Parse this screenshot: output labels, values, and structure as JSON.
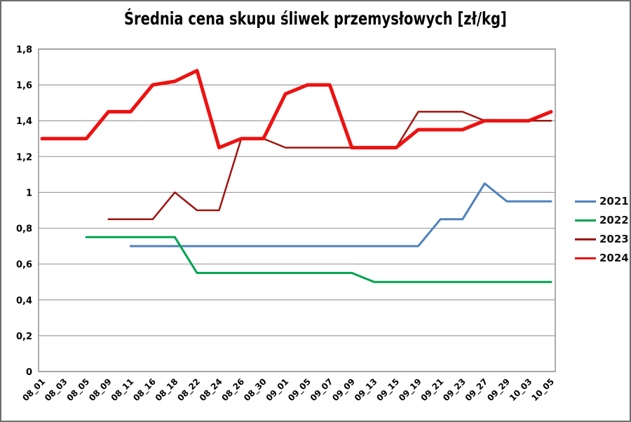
{
  "title": "Średnia cena skupu śliwek przemysłowych [zł/kg]",
  "chart_data": {
    "type": "line",
    "categories": [
      "08_01",
      "08_03",
      "08_05",
      "08_09",
      "08_11",
      "08_16",
      "08_18",
      "08_22",
      "08_24",
      "08_26",
      "08_30",
      "09_01",
      "09_05",
      "09_07",
      "09_09",
      "09_13",
      "09_15",
      "09_19",
      "09_21",
      "09_23",
      "09_27",
      "09_29",
      "10_03",
      "10_05"
    ],
    "series": [
      {
        "name": "2021",
        "color": "#4F81BD",
        "width": 3,
        "values": [
          null,
          null,
          null,
          null,
          0.7,
          0.7,
          0.7,
          0.7,
          0.7,
          0.7,
          0.7,
          0.7,
          0.7,
          0.7,
          0.7,
          0.7,
          0.7,
          0.7,
          0.85,
          0.85,
          1.05,
          0.95,
          0.95,
          0.95
        ]
      },
      {
        "name": "2022",
        "color": "#00A350",
        "width": 3,
        "values": [
          null,
          null,
          0.75,
          0.75,
          0.75,
          0.75,
          0.75,
          0.55,
          0.55,
          0.55,
          0.55,
          0.55,
          0.55,
          0.55,
          0.55,
          0.5,
          0.5,
          0.5,
          0.5,
          0.5,
          0.5,
          0.5,
          0.5,
          0.5
        ]
      },
      {
        "name": "2023",
        "color": "#A01410",
        "width": 2.5,
        "values": [
          null,
          null,
          null,
          0.85,
          0.85,
          0.85,
          1.0,
          0.9,
          0.9,
          1.3,
          1.3,
          1.25,
          1.25,
          1.25,
          1.25,
          1.25,
          1.25,
          1.45,
          1.45,
          1.45,
          1.4,
          1.4,
          1.4,
          1.4
        ]
      },
      {
        "name": "2024",
        "color": "#EC1212",
        "width": 5,
        "values": [
          1.3,
          1.3,
          1.3,
          1.45,
          1.45,
          1.6,
          1.62,
          1.68,
          1.25,
          1.3,
          1.3,
          1.55,
          1.6,
          1.6,
          1.25,
          1.25,
          1.25,
          1.35,
          1.35,
          1.35,
          1.4,
          1.4,
          1.4,
          1.45
        ]
      }
    ],
    "xlabel": "",
    "ylabel": "",
    "ylim": [
      0,
      1.8
    ],
    "ytick_values": [
      0,
      0.2,
      0.4,
      0.6,
      0.8,
      1,
      1.2,
      1.4,
      1.6,
      1.8
    ],
    "ytick_labels": [
      "0",
      "0,2",
      "0,4",
      "0,6",
      "0,8",
      "1",
      "1,2",
      "1,4",
      "1,6",
      "1,8"
    ],
    "grid": true,
    "legend_position": "right"
  }
}
